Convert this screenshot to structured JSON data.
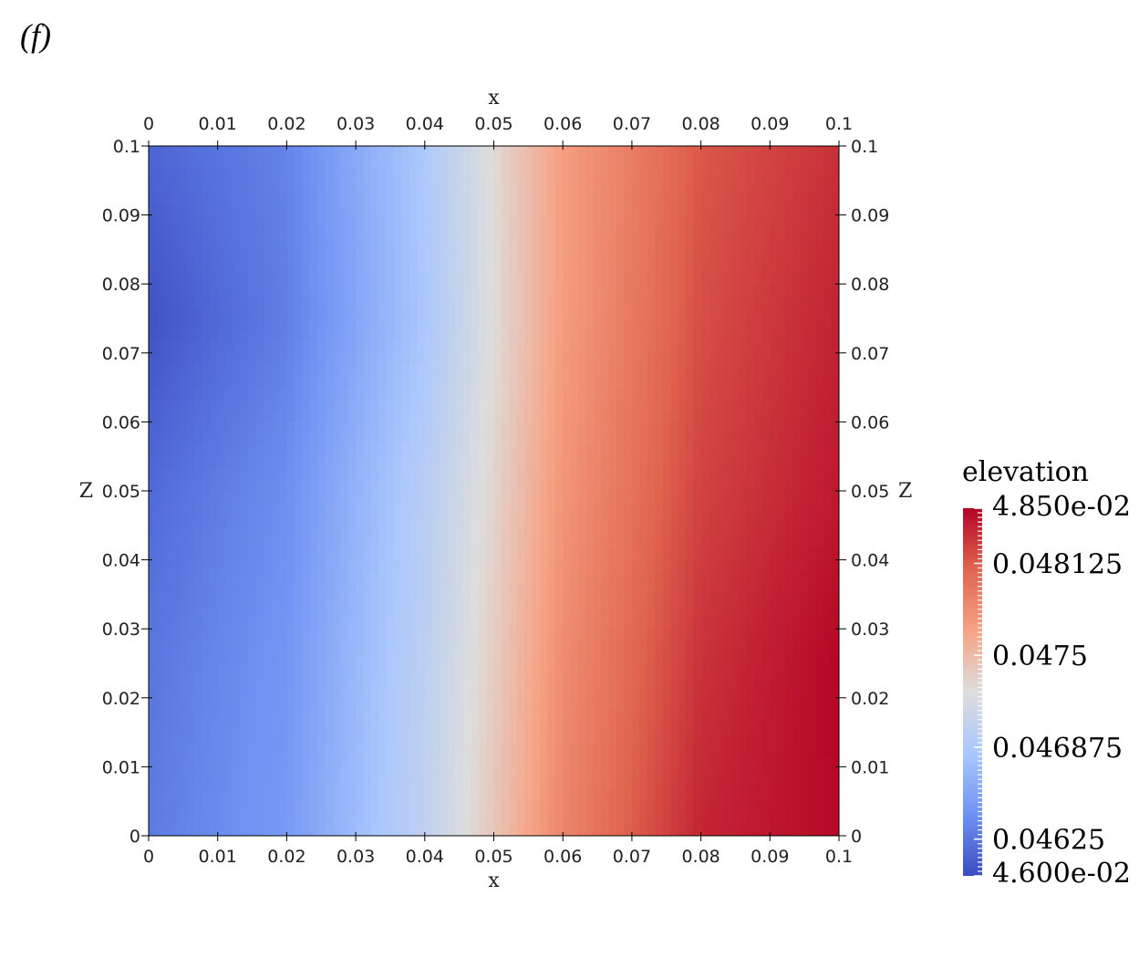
{
  "panel_label": "(f)",
  "chart_data": {
    "type": "heatmap",
    "title": "",
    "xlabel": "x",
    "ylabel": "z",
    "xlim": [
      0,
      0.1
    ],
    "ylim": [
      0,
      0.1
    ],
    "x_ticks": [
      "0",
      "0.01",
      "0.02",
      "0.03",
      "0.04",
      "0.05",
      "0.06",
      "0.07",
      "0.08",
      "0.09",
      "0.1"
    ],
    "y_ticks": [
      "0",
      "0.01",
      "0.02",
      "0.03",
      "0.04",
      "0.05",
      "0.06",
      "0.07",
      "0.08",
      "0.09",
      "0.1"
    ],
    "x_tick_values": [
      0,
      0.01,
      0.02,
      0.03,
      0.04,
      0.05,
      0.06,
      0.07,
      0.08,
      0.09,
      0.1
    ],
    "y_tick_values": [
      0,
      0.01,
      0.02,
      0.03,
      0.04,
      0.05,
      0.06,
      0.07,
      0.08,
      0.09,
      0.1
    ],
    "field": "elevation",
    "grid": false,
    "colorbar": {
      "title": "elevation",
      "range": [
        0.046,
        0.0485
      ],
      "labels": [
        "4.850e-02",
        "0.048125",
        "0.0475",
        "0.046875",
        "0.04625",
        "4.600e-02"
      ],
      "label_values": [
        0.0485,
        0.048125,
        0.0475,
        0.046875,
        0.04625,
        0.046
      ],
      "colormap": [
        "#3b4cc0",
        "#6f92f3",
        "#aac7fd",
        "#dddddd",
        "#f6a385",
        "#e0654f",
        "#b40426"
      ]
    },
    "field_samples": {
      "x": [
        0,
        0.02,
        0.04,
        0.05,
        0.06,
        0.08,
        0.1
      ],
      "z": [
        0.1,
        0.075,
        0.05,
        0.025,
        0
      ],
      "values": [
        [
          0.04615,
          0.04633,
          0.04686,
          0.04728,
          0.0477,
          0.04814,
          0.04831
        ],
        [
          0.04604,
          0.0463,
          0.04683,
          0.04726,
          0.04771,
          0.04818,
          0.04837
        ],
        [
          0.04618,
          0.0464,
          0.04694,
          0.04732,
          0.04776,
          0.04823,
          0.04841
        ],
        [
          0.04625,
          0.04645,
          0.04698,
          0.04737,
          0.04782,
          0.0483,
          0.04849
        ],
        [
          0.04628,
          0.04648,
          0.04701,
          0.04742,
          0.04787,
          0.04836,
          0.04848
        ]
      ]
    }
  }
}
